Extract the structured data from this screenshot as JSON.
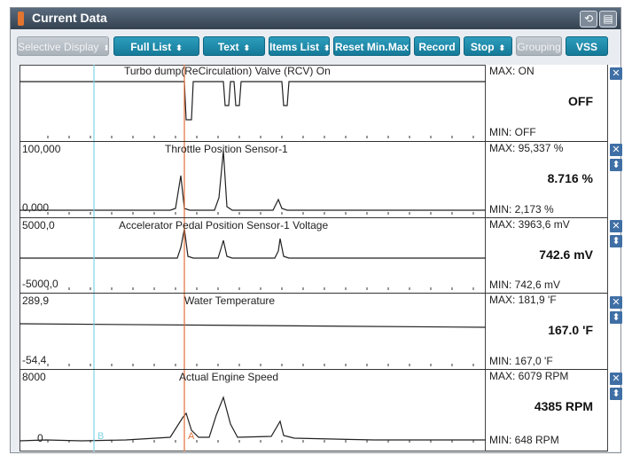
{
  "window": {
    "title": "Current Data"
  },
  "toolbar": {
    "buttons": [
      {
        "label": "Selective Display",
        "dropdown": true,
        "disabled": true
      },
      {
        "label": "Full List",
        "dropdown": true,
        "disabled": false
      },
      {
        "label": "Text",
        "dropdown": true,
        "disabled": false
      },
      {
        "label": "Items List",
        "dropdown": true,
        "disabled": false
      },
      {
        "label": "Reset Min.Max",
        "dropdown": false,
        "disabled": false
      },
      {
        "label": "Record",
        "dropdown": false,
        "disabled": false
      },
      {
        "label": "Stop",
        "dropdown": true,
        "disabled": false
      },
      {
        "label": "Grouping",
        "dropdown": false,
        "disabled": true
      },
      {
        "label": "VSS",
        "dropdown": false,
        "disabled": false
      }
    ]
  },
  "cursors": {
    "b_label": "B",
    "a_label": "A",
    "b_color": "#7fd6e4",
    "a_color": "#e0703a"
  },
  "graphs": [
    {
      "name": "Turbo dump(ReCirculation) Valve (RCV) On",
      "max_label": "MAX: ON",
      "min_label": "MIN: OFF",
      "current": "OFF",
      "scale_top": "",
      "scale_bottom": "",
      "kind": "digital"
    },
    {
      "name": "Throttle Position Sensor-1",
      "max_label": "MAX: 95,337 %",
      "min_label": "MIN: 2,173 %",
      "current": "8.716 %",
      "scale_top": "100,000",
      "scale_bottom": "0,000",
      "kind": "analog"
    },
    {
      "name": "Accelerator Pedal Position Sensor-1 Voltage",
      "max_label": "MAX: 3963,6 mV",
      "min_label": "MIN: 742,6 mV",
      "current": "742.6 mV",
      "scale_top": "5000,0",
      "scale_bottom": "-5000,0",
      "kind": "analog"
    },
    {
      "name": "Water Temperature",
      "max_label": "MAX: 181,9 'F",
      "min_label": "MIN: 167,0 'F",
      "current": "167.0 'F",
      "scale_top": "289,9",
      "scale_bottom": "-54,4",
      "kind": "analog"
    },
    {
      "name": "Actual Engine Speed",
      "max_label": "MAX:  6079 RPM",
      "min_label": "MIN:   648 RPM",
      "current": "4385 RPM",
      "scale_top": "8000",
      "scale_bottom": "0",
      "kind": "analog"
    }
  ],
  "icons": {
    "close": "close-icon",
    "pin": "pin-icon",
    "record": "record-window-icon",
    "restore": "restore-window-icon"
  }
}
